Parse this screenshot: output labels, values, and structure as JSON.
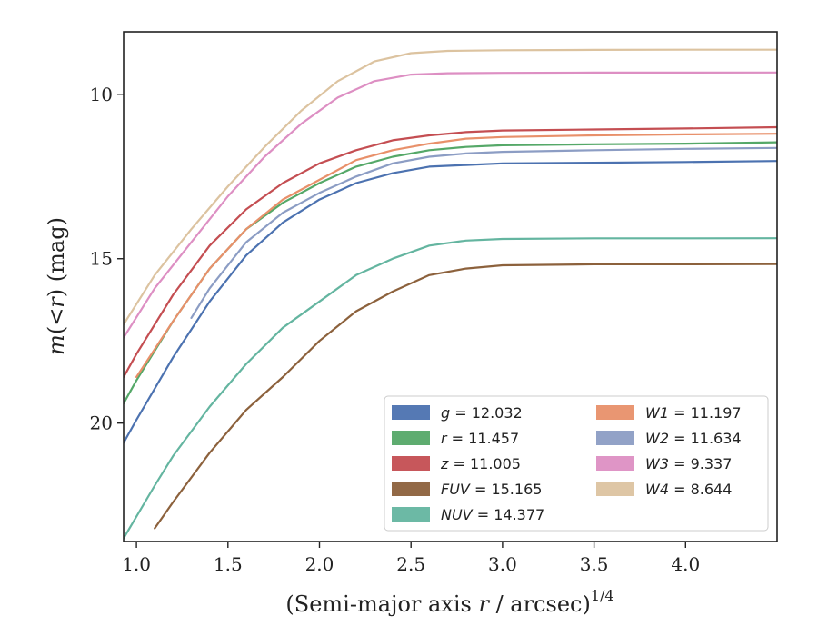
{
  "chart_data": {
    "type": "line",
    "title": "",
    "xlabel_main": "(Semi-major axis ",
    "xlabel_var": "r",
    "xlabel_rest": " / arcsec)",
    "xlabel_sup": "1/4",
    "ylabel_m": "m",
    "ylabel_paren": "(<",
    "ylabel_r": "r",
    "ylabel_rest": ") (mag)",
    "xlim": [
      0.93,
      4.5
    ],
    "ylim": [
      23.6,
      8.1
    ],
    "y_inverted": true,
    "xticks": [
      "1.0",
      "1.5",
      "2.0",
      "2.5",
      "3.0",
      "3.5",
      "4.0"
    ],
    "xtick_values": [
      1.0,
      1.5,
      2.0,
      2.5,
      3.0,
      3.5,
      4.0
    ],
    "yticks": [
      "10",
      "15",
      "20"
    ],
    "ytick_values": [
      10,
      15,
      20
    ],
    "grid": false,
    "legend_position": "lower-right",
    "legend_ncol": 2,
    "series": [
      {
        "name": "g",
        "label_value": "= 12.032",
        "color": "#4c72b0",
        "x": [
          0.93,
          1.0,
          1.2,
          1.4,
          1.6,
          1.8,
          2.0,
          2.2,
          2.4,
          2.6,
          2.8,
          3.0,
          3.5,
          4.0,
          4.5
        ],
        "y": [
          20.6,
          19.9,
          18.0,
          16.3,
          14.9,
          13.9,
          13.2,
          12.7,
          12.4,
          12.2,
          12.15,
          12.1,
          12.08,
          12.06,
          12.03
        ]
      },
      {
        "name": "r",
        "label_value": "= 11.457",
        "color": "#55a868",
        "x": [
          0.93,
          1.0,
          1.2,
          1.4,
          1.6,
          1.8,
          2.0,
          2.2,
          2.4,
          2.6,
          2.8,
          3.0,
          3.5,
          4.0,
          4.5
        ],
        "y": [
          19.4,
          18.7,
          16.9,
          15.3,
          14.1,
          13.3,
          12.7,
          12.2,
          11.9,
          11.7,
          11.6,
          11.55,
          11.52,
          11.5,
          11.46
        ]
      },
      {
        "name": "z",
        "label_value": "= 11.005",
        "color": "#c44e52",
        "x": [
          0.93,
          1.0,
          1.2,
          1.4,
          1.6,
          1.8,
          2.0,
          2.2,
          2.4,
          2.6,
          2.8,
          3.0,
          3.5,
          4.0,
          4.5
        ],
        "y": [
          18.6,
          17.9,
          16.1,
          14.6,
          13.5,
          12.7,
          12.1,
          11.7,
          11.4,
          11.25,
          11.15,
          11.1,
          11.07,
          11.04,
          11.0
        ]
      },
      {
        "name": "FUV",
        "label_value": "= 15.165",
        "color": "#8c613c",
        "x": [
          1.1,
          1.2,
          1.4,
          1.6,
          1.8,
          2.0,
          2.2,
          2.4,
          2.6,
          2.8,
          3.0,
          3.5,
          4.0,
          4.5
        ],
        "y": [
          23.2,
          22.4,
          20.9,
          19.6,
          18.6,
          17.5,
          16.6,
          16.0,
          15.5,
          15.3,
          15.2,
          15.17,
          15.17,
          15.165
        ]
      },
      {
        "name": "NUV",
        "label_value": "= 14.377",
        "color": "#64b5a0",
        "x": [
          0.93,
          1.1,
          1.2,
          1.4,
          1.6,
          1.8,
          2.0,
          2.2,
          2.4,
          2.6,
          2.8,
          3.0,
          3.5,
          4.0,
          4.5
        ],
        "y": [
          23.5,
          21.9,
          21.0,
          19.5,
          18.2,
          17.1,
          16.3,
          15.5,
          15.0,
          14.6,
          14.45,
          14.4,
          14.38,
          14.38,
          14.377
        ]
      },
      {
        "name": "W1",
        "label_value": "= 11.197",
        "color": "#e8906a",
        "x": [
          1.0,
          1.2,
          1.4,
          1.6,
          1.8,
          2.0,
          2.2,
          2.4,
          2.6,
          2.8,
          3.0,
          3.5,
          4.0,
          4.5
        ],
        "y": [
          18.6,
          16.9,
          15.3,
          14.1,
          13.2,
          12.6,
          12.0,
          11.7,
          11.5,
          11.35,
          11.3,
          11.25,
          11.22,
          11.2
        ]
      },
      {
        "name": "W2",
        "label_value": "= 11.634",
        "color": "#8c9dc4",
        "x": [
          1.3,
          1.4,
          1.6,
          1.8,
          2.0,
          2.2,
          2.4,
          2.6,
          2.8,
          3.0,
          3.5,
          4.0,
          4.5
        ],
        "y": [
          16.8,
          15.9,
          14.5,
          13.6,
          13.0,
          12.5,
          12.1,
          11.9,
          11.8,
          11.75,
          11.7,
          11.66,
          11.63
        ]
      },
      {
        "name": "W3",
        "label_value": "= 9.337",
        "color": "#dd8fc3",
        "x": [
          0.93,
          1.1,
          1.3,
          1.5,
          1.7,
          1.9,
          2.1,
          2.3,
          2.5,
          2.7,
          3.0,
          3.5,
          4.0,
          4.5
        ],
        "y": [
          17.4,
          15.9,
          14.5,
          13.1,
          11.9,
          10.9,
          10.1,
          9.6,
          9.4,
          9.36,
          9.35,
          9.34,
          9.34,
          9.337
        ]
      },
      {
        "name": "W4",
        "label_value": "= 8.644",
        "color": "#dcc3a0",
        "x": [
          0.93,
          1.1,
          1.3,
          1.5,
          1.7,
          1.9,
          2.1,
          2.3,
          2.5,
          2.7,
          3.0,
          3.5,
          4.0,
          4.5
        ],
        "y": [
          17.0,
          15.5,
          14.1,
          12.8,
          11.6,
          10.5,
          9.6,
          9.0,
          8.75,
          8.68,
          8.66,
          8.65,
          8.645,
          8.644
        ]
      }
    ],
    "legend_order": [
      0,
      1,
      2,
      3,
      4,
      5,
      6,
      7,
      8
    ]
  }
}
